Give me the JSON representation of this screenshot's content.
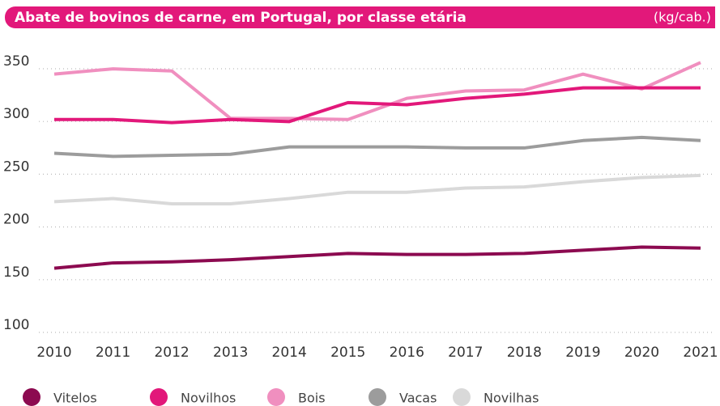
{
  "chart_data": {
    "type": "line",
    "title": "Abate de bovinos de carne, em Portugal, por classe etária",
    "unit": "(kg/cab.)",
    "categories": [
      "2010",
      "2011",
      "2012",
      "2013",
      "2014",
      "2015",
      "2016",
      "2017",
      "2018",
      "2019",
      "2020",
      "2021"
    ],
    "series": [
      {
        "name": "Vitelos",
        "color": "#8c0a50",
        "values": [
          154,
          159,
          160,
          162,
          165,
          168,
          167,
          167,
          168,
          171,
          174,
          173
        ]
      },
      {
        "name": "Novilhos",
        "color": "#e2187a",
        "values": [
          295,
          295,
          292,
          295,
          293,
          311,
          309,
          315,
          319,
          325,
          325,
          325
        ]
      },
      {
        "name": "Bois",
        "color": "#f08fbf",
        "values": [
          338,
          343,
          341,
          296,
          296,
          295,
          315,
          322,
          323,
          338,
          324,
          349
        ]
      },
      {
        "name": "Vacas",
        "color": "#9c9c9c",
        "values": [
          263,
          260,
          261,
          262,
          269,
          269,
          269,
          268,
          268,
          275,
          278,
          275
        ]
      },
      {
        "name": "Novilhas",
        "color": "#d9d9d9",
        "values": [
          217,
          220,
          215,
          215,
          220,
          226,
          226,
          230,
          231,
          236,
          240,
          242
        ]
      }
    ],
    "ylim": [
      100,
      350
    ],
    "yticks": [
      100,
      150,
      200,
      250,
      300,
      350
    ],
    "grid": true,
    "title_color": "#e2187a"
  }
}
